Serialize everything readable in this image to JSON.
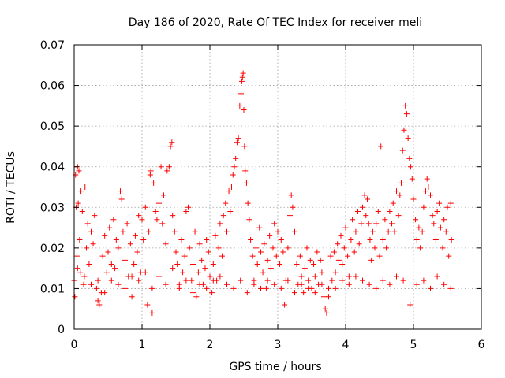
{
  "chart_data": {
    "type": "scatter",
    "title": "Day 186 of 2020, Rate Of TEC Index for receiver meli",
    "xlabel": "GPS time / hours",
    "ylabel": "ROTI / TECUs",
    "xlim": [
      0,
      6
    ],
    "ylim": [
      0,
      0.07
    ],
    "x_ticks": [
      0,
      1,
      2,
      3,
      4,
      5,
      6
    ],
    "x_tick_labels": [
      "0",
      "1",
      "2",
      "3",
      "4",
      "5",
      "6"
    ],
    "y_ticks": [
      0,
      0.01,
      0.02,
      0.03,
      0.04,
      0.05,
      0.06,
      0.07
    ],
    "y_tick_labels": [
      "0",
      "0.01",
      "0.02",
      "0.03",
      "0.04",
      "0.05",
      "0.06",
      "0.07"
    ],
    "grid": true,
    "marker": "+",
    "color": "#ff0000",
    "series": [
      {
        "name": "ROTI",
        "points": [
          [
            0.0,
            0.012
          ],
          [
            0.01,
            0.008
          ],
          [
            0.02,
            0.038
          ],
          [
            0.03,
            0.03
          ],
          [
            0.04,
            0.018
          ],
          [
            0.05,
            0.04
          ],
          [
            0.06,
            0.031
          ],
          [
            0.07,
            0.039
          ],
          [
            0.08,
            0.022
          ],
          [
            0.09,
            0.014
          ],
          [
            0.1,
            0.034
          ],
          [
            0.12,
            0.029
          ],
          [
            0.14,
            0.011
          ],
          [
            0.16,
            0.035
          ],
          [
            0.18,
            0.02
          ],
          [
            0.2,
            0.026
          ],
          [
            0.22,
            0.016
          ],
          [
            0.25,
            0.024
          ],
          [
            0.28,
            0.021
          ],
          [
            0.3,
            0.028
          ],
          [
            0.33,
            0.01
          ],
          [
            0.35,
            0.007
          ],
          [
            0.37,
            0.006
          ],
          [
            0.4,
            0.009
          ],
          [
            0.42,
            0.018
          ],
          [
            0.45,
            0.023
          ],
          [
            0.48,
            0.014
          ],
          [
            0.5,
            0.019
          ],
          [
            0.52,
            0.025
          ],
          [
            0.55,
            0.012
          ],
          [
            0.58,
            0.027
          ],
          [
            0.6,
            0.015
          ],
          [
            0.62,
            0.022
          ],
          [
            0.65,
            0.02
          ],
          [
            0.68,
            0.034
          ],
          [
            0.7,
            0.032
          ],
          [
            0.72,
            0.024
          ],
          [
            0.75,
            0.017
          ],
          [
            0.78,
            0.026
          ],
          [
            0.8,
            0.013
          ],
          [
            0.83,
            0.021
          ],
          [
            0.85,
            0.008
          ],
          [
            0.88,
            0.016
          ],
          [
            0.9,
            0.023
          ],
          [
            0.93,
            0.019
          ],
          [
            0.95,
            0.028
          ],
          [
            0.98,
            0.014
          ],
          [
            1.0,
            0.027
          ],
          [
            1.02,
            0.022
          ],
          [
            1.05,
            0.03
          ],
          [
            1.08,
            0.006
          ],
          [
            1.1,
            0.024
          ],
          [
            1.12,
            0.038
          ],
          [
            1.13,
            0.039
          ],
          [
            1.15,
            0.004
          ],
          [
            1.17,
            0.036
          ],
          [
            1.2,
            0.029
          ],
          [
            1.22,
            0.027
          ],
          [
            1.25,
            0.031
          ],
          [
            1.28,
            0.04
          ],
          [
            1.3,
            0.026
          ],
          [
            1.32,
            0.033
          ],
          [
            1.35,
            0.021
          ],
          [
            1.37,
            0.039
          ],
          [
            1.4,
            0.04
          ],
          [
            1.42,
            0.045
          ],
          [
            1.44,
            0.046
          ],
          [
            1.45,
            0.028
          ],
          [
            1.48,
            0.024
          ],
          [
            1.5,
            0.019
          ],
          [
            1.52,
            0.016
          ],
          [
            1.55,
            0.011
          ],
          [
            1.58,
            0.022
          ],
          [
            1.6,
            0.014
          ],
          [
            1.63,
            0.018
          ],
          [
            1.65,
            0.029
          ],
          [
            1.68,
            0.03
          ],
          [
            1.7,
            0.02
          ],
          [
            1.73,
            0.012
          ],
          [
            1.75,
            0.016
          ],
          [
            1.78,
            0.024
          ],
          [
            1.8,
            0.008
          ],
          [
            1.83,
            0.014
          ],
          [
            1.85,
            0.021
          ],
          [
            1.88,
            0.017
          ],
          [
            1.9,
            0.011
          ],
          [
            1.93,
            0.015
          ],
          [
            1.95,
            0.022
          ],
          [
            1.98,
            0.019
          ],
          [
            2.0,
            0.013
          ],
          [
            2.03,
            0.009
          ],
          [
            2.05,
            0.016
          ],
          [
            2.08,
            0.023
          ],
          [
            2.1,
            0.012
          ],
          [
            2.13,
            0.02
          ],
          [
            2.15,
            0.026
          ],
          [
            2.18,
            0.018
          ],
          [
            2.2,
            0.028
          ],
          [
            2.23,
            0.031
          ],
          [
            2.25,
            0.024
          ],
          [
            2.28,
            0.034
          ],
          [
            2.3,
            0.029
          ],
          [
            2.32,
            0.035
          ],
          [
            2.34,
            0.038
          ],
          [
            2.36,
            0.04
          ],
          [
            2.38,
            0.042
          ],
          [
            2.4,
            0.046
          ],
          [
            2.42,
            0.047
          ],
          [
            2.44,
            0.055
          ],
          [
            2.46,
            0.058
          ],
          [
            2.47,
            0.061
          ],
          [
            2.48,
            0.062
          ],
          [
            2.49,
            0.063
          ],
          [
            2.5,
            0.054
          ],
          [
            2.51,
            0.045
          ],
          [
            2.52,
            0.039
          ],
          [
            2.54,
            0.036
          ],
          [
            2.56,
            0.031
          ],
          [
            2.58,
            0.027
          ],
          [
            2.6,
            0.022
          ],
          [
            2.63,
            0.018
          ],
          [
            2.65,
            0.012
          ],
          [
            2.68,
            0.02
          ],
          [
            2.7,
            0.016
          ],
          [
            2.73,
            0.025
          ],
          [
            2.75,
            0.019
          ],
          [
            2.78,
            0.014
          ],
          [
            2.8,
            0.021
          ],
          [
            2.83,
            0.01
          ],
          [
            2.85,
            0.017
          ],
          [
            2.88,
            0.023
          ],
          [
            2.9,
            0.015
          ],
          [
            2.93,
            0.02
          ],
          [
            2.95,
            0.026
          ],
          [
            2.98,
            0.018
          ],
          [
            3.0,
            0.024
          ],
          [
            3.03,
            0.016
          ],
          [
            3.05,
            0.022
          ],
          [
            3.08,
            0.019
          ],
          [
            3.1,
            0.006
          ],
          [
            3.12,
            0.012
          ],
          [
            3.15,
            0.02
          ],
          [
            3.18,
            0.028
          ],
          [
            3.2,
            0.033
          ],
          [
            3.22,
            0.03
          ],
          [
            3.25,
            0.024
          ],
          [
            3.28,
            0.016
          ],
          [
            3.3,
            0.011
          ],
          [
            3.33,
            0.018
          ],
          [
            3.35,
            0.013
          ],
          [
            3.38,
            0.009
          ],
          [
            3.4,
            0.015
          ],
          [
            3.43,
            0.02
          ],
          [
            3.45,
            0.012
          ],
          [
            3.48,
            0.017
          ],
          [
            3.5,
            0.01
          ],
          [
            3.53,
            0.016
          ],
          [
            3.55,
            0.013
          ],
          [
            3.58,
            0.019
          ],
          [
            3.6,
            0.011
          ],
          [
            3.63,
            0.017
          ],
          [
            3.65,
            0.014
          ],
          [
            3.68,
            0.008
          ],
          [
            3.7,
            0.005
          ],
          [
            3.72,
            0.004
          ],
          [
            3.75,
            0.01
          ],
          [
            3.78,
            0.018
          ],
          [
            3.8,
            0.012
          ],
          [
            3.83,
            0.019
          ],
          [
            3.85,
            0.014
          ],
          [
            3.88,
            0.021
          ],
          [
            3.9,
            0.017
          ],
          [
            3.93,
            0.023
          ],
          [
            3.95,
            0.016
          ],
          [
            3.98,
            0.02
          ],
          [
            4.0,
            0.025
          ],
          [
            4.03,
            0.018
          ],
          [
            4.05,
            0.013
          ],
          [
            4.08,
            0.022
          ],
          [
            4.1,
            0.027
          ],
          [
            4.13,
            0.019
          ],
          [
            4.15,
            0.024
          ],
          [
            4.18,
            0.029
          ],
          [
            4.2,
            0.021
          ],
          [
            4.23,
            0.026
          ],
          [
            4.25,
            0.03
          ],
          [
            4.28,
            0.033
          ],
          [
            4.3,
            0.028
          ],
          [
            4.32,
            0.032
          ],
          [
            4.34,
            0.026
          ],
          [
            4.36,
            0.022
          ],
          [
            4.38,
            0.017
          ],
          [
            4.4,
            0.024
          ],
          [
            4.43,
            0.02
          ],
          [
            4.45,
            0.026
          ],
          [
            4.48,
            0.029
          ],
          [
            4.5,
            0.018
          ],
          [
            4.52,
            0.045
          ],
          [
            4.55,
            0.022
          ],
          [
            4.58,
            0.027
          ],
          [
            4.6,
            0.02
          ],
          [
            4.63,
            0.024
          ],
          [
            4.65,
            0.029
          ],
          [
            4.68,
            0.026
          ],
          [
            4.7,
            0.031
          ],
          [
            4.72,
            0.024
          ],
          [
            4.75,
            0.034
          ],
          [
            4.78,
            0.028
          ],
          [
            4.8,
            0.033
          ],
          [
            4.82,
            0.036
          ],
          [
            4.84,
            0.044
          ],
          [
            4.86,
            0.049
          ],
          [
            4.88,
            0.055
          ],
          [
            4.9,
            0.053
          ],
          [
            4.92,
            0.047
          ],
          [
            4.94,
            0.042
          ],
          [
            4.96,
            0.04
          ],
          [
            4.98,
            0.037
          ],
          [
            5.0,
            0.032
          ],
          [
            5.03,
            0.027
          ],
          [
            5.05,
            0.022
          ],
          [
            5.08,
            0.025
          ],
          [
            5.1,
            0.02
          ],
          [
            5.13,
            0.024
          ],
          [
            5.15,
            0.03
          ],
          [
            5.18,
            0.034
          ],
          [
            5.2,
            0.037
          ],
          [
            5.22,
            0.035
          ],
          [
            5.25,
            0.033
          ],
          [
            5.28,
            0.028
          ],
          [
            5.3,
            0.026
          ],
          [
            5.33,
            0.022
          ],
          [
            5.35,
            0.029
          ],
          [
            5.38,
            0.031
          ],
          [
            5.4,
            0.025
          ],
          [
            5.43,
            0.02
          ],
          [
            5.45,
            0.027
          ],
          [
            5.48,
            0.024
          ],
          [
            5.5,
            0.03
          ],
          [
            5.52,
            0.018
          ],
          [
            5.55,
            0.031
          ],
          [
            5.56,
            0.022
          ],
          [
            0.05,
            0.015
          ],
          [
            0.15,
            0.013
          ],
          [
            0.25,
            0.011
          ],
          [
            0.35,
            0.012
          ],
          [
            0.45,
            0.009
          ],
          [
            0.55,
            0.016
          ],
          [
            0.65,
            0.011
          ],
          [
            0.75,
            0.01
          ],
          [
            0.85,
            0.013
          ],
          [
            0.95,
            0.012
          ],
          [
            1.05,
            0.014
          ],
          [
            1.15,
            0.01
          ],
          [
            1.25,
            0.013
          ],
          [
            1.35,
            0.011
          ],
          [
            1.45,
            0.015
          ],
          [
            1.55,
            0.01
          ],
          [
            1.65,
            0.012
          ],
          [
            1.75,
            0.009
          ],
          [
            1.85,
            0.011
          ],
          [
            1.95,
            0.01
          ],
          [
            2.05,
            0.012
          ],
          [
            2.15,
            0.013
          ],
          [
            2.25,
            0.011
          ],
          [
            2.35,
            0.01
          ],
          [
            2.45,
            0.012
          ],
          [
            2.55,
            0.009
          ],
          [
            2.65,
            0.011
          ],
          [
            2.75,
            0.01
          ],
          [
            2.85,
            0.012
          ],
          [
            2.95,
            0.011
          ],
          [
            3.05,
            0.01
          ],
          [
            3.15,
            0.012
          ],
          [
            3.25,
            0.009
          ],
          [
            3.35,
            0.011
          ],
          [
            3.45,
            0.01
          ],
          [
            3.55,
            0.009
          ],
          [
            3.65,
            0.011
          ],
          [
            3.75,
            0.008
          ],
          [
            3.85,
            0.01
          ],
          [
            3.95,
            0.012
          ],
          [
            4.05,
            0.011
          ],
          [
            4.15,
            0.013
          ],
          [
            4.25,
            0.012
          ],
          [
            4.35,
            0.011
          ],
          [
            4.45,
            0.01
          ],
          [
            4.55,
            0.012
          ],
          [
            4.65,
            0.011
          ],
          [
            4.75,
            0.013
          ],
          [
            4.85,
            0.012
          ],
          [
            4.95,
            0.006
          ],
          [
            5.05,
            0.011
          ],
          [
            5.15,
            0.012
          ],
          [
            5.25,
            0.01
          ],
          [
            5.35,
            0.013
          ],
          [
            5.45,
            0.011
          ],
          [
            5.55,
            0.01
          ]
        ]
      }
    ]
  }
}
